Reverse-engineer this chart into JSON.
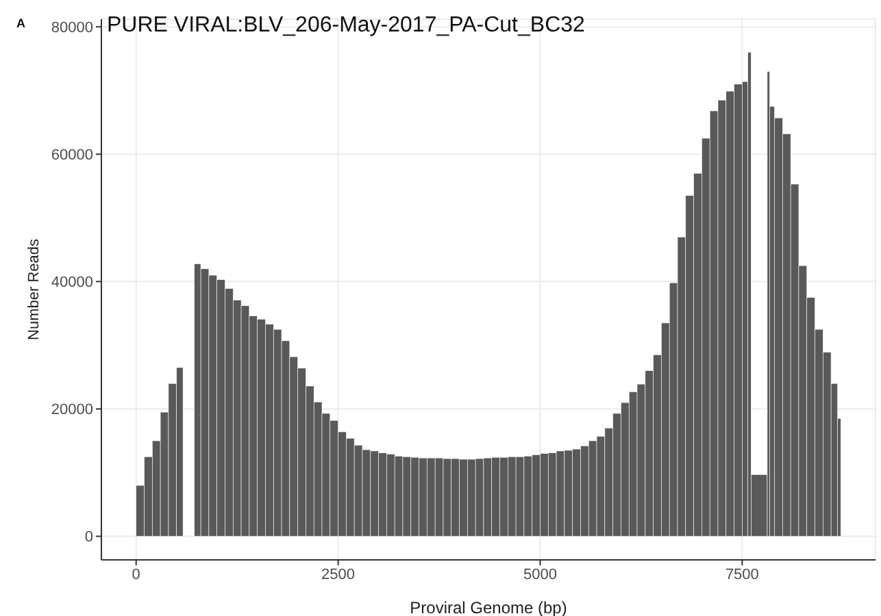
{
  "chart_data": {
    "type": "histogram",
    "title": "PURE VIRAL:BLV_206-May-2017_PA-Cut_BC32",
    "annotations": [
      "A"
    ],
    "xlabel": "Proviral Genome (bp)",
    "ylabel": "Number Reads",
    "color": "#595959",
    "bins": [
      0,
      100,
      200,
      300,
      400,
      500,
      580,
      720,
      800,
      900,
      1000,
      1100,
      1200,
      1300,
      1400,
      1500,
      1600,
      1700,
      1800,
      1900,
      2000,
      2100,
      2200,
      2300,
      2400,
      2500,
      2600,
      2700,
      2800,
      2900,
      3000,
      3100,
      3200,
      3300,
      3400,
      3500,
      3600,
      3700,
      3800,
      3900,
      4000,
      4100,
      4200,
      4300,
      4400,
      4500,
      4600,
      4700,
      4800,
      4900,
      5000,
      5100,
      5200,
      5300,
      5400,
      5500,
      5600,
      5700,
      5800,
      5900,
      6000,
      6100,
      6200,
      6300,
      6400,
      6500,
      6600,
      6700,
      6800,
      6900,
      7000,
      7100,
      7200,
      7300,
      7400,
      7500,
      7570,
      7610,
      7810,
      7840,
      7900,
      8000,
      8100,
      8200,
      8300,
      8400,
      8500,
      8600,
      8680,
      8720
    ],
    "values": [
      8000,
      12500,
      15000,
      19500,
      24000,
      26500,
      0,
      42800,
      42000,
      41000,
      40300,
      38900,
      37100,
      36200,
      34600,
      34100,
      33300,
      32500,
      30700,
      28200,
      26400,
      23600,
      21100,
      19300,
      18200,
      16400,
      15400,
      14300,
      13600,
      13400,
      13100,
      12900,
      12600,
      12500,
      12400,
      12300,
      12300,
      12300,
      12200,
      12200,
      12100,
      12100,
      12200,
      12300,
      12400,
      12400,
      12500,
      12500,
      12600,
      12800,
      13000,
      13100,
      13400,
      13500,
      13700,
      14200,
      15000,
      15700,
      17000,
      19300,
      21000,
      22700,
      23900,
      26000,
      28500,
      33500,
      39800,
      47000,
      53500,
      57000,
      62500,
      66800,
      68500,
      69900,
      71000,
      71400,
      76000,
      9700,
      73000,
      67500,
      65700,
      63200,
      55300,
      42500,
      37500,
      32500,
      28900,
      24000,
      18500
    ],
    "xlim": [
      -430,
      9150
    ],
    "xticks": [
      0,
      2500,
      5000,
      7500
    ],
    "ylim": [
      -3700,
      81200
    ],
    "yticks": [
      0,
      20000,
      40000,
      60000,
      80000
    ],
    "grid": true
  }
}
